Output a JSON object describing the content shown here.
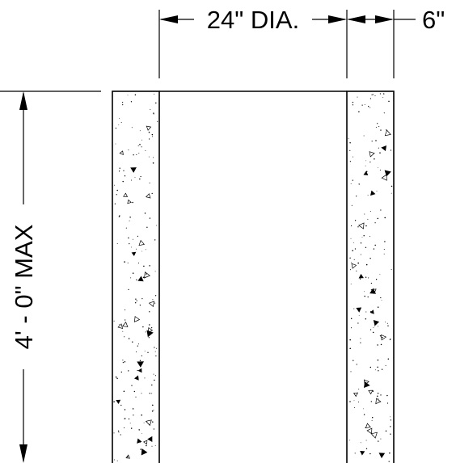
{
  "dimensions": {
    "diameter_label": "24\" DIA.",
    "wall_thickness_label": "6\"",
    "height_label": "4' - 0\" MAX"
  },
  "colors": {
    "ink": "#000000",
    "background": "#ffffff"
  }
}
